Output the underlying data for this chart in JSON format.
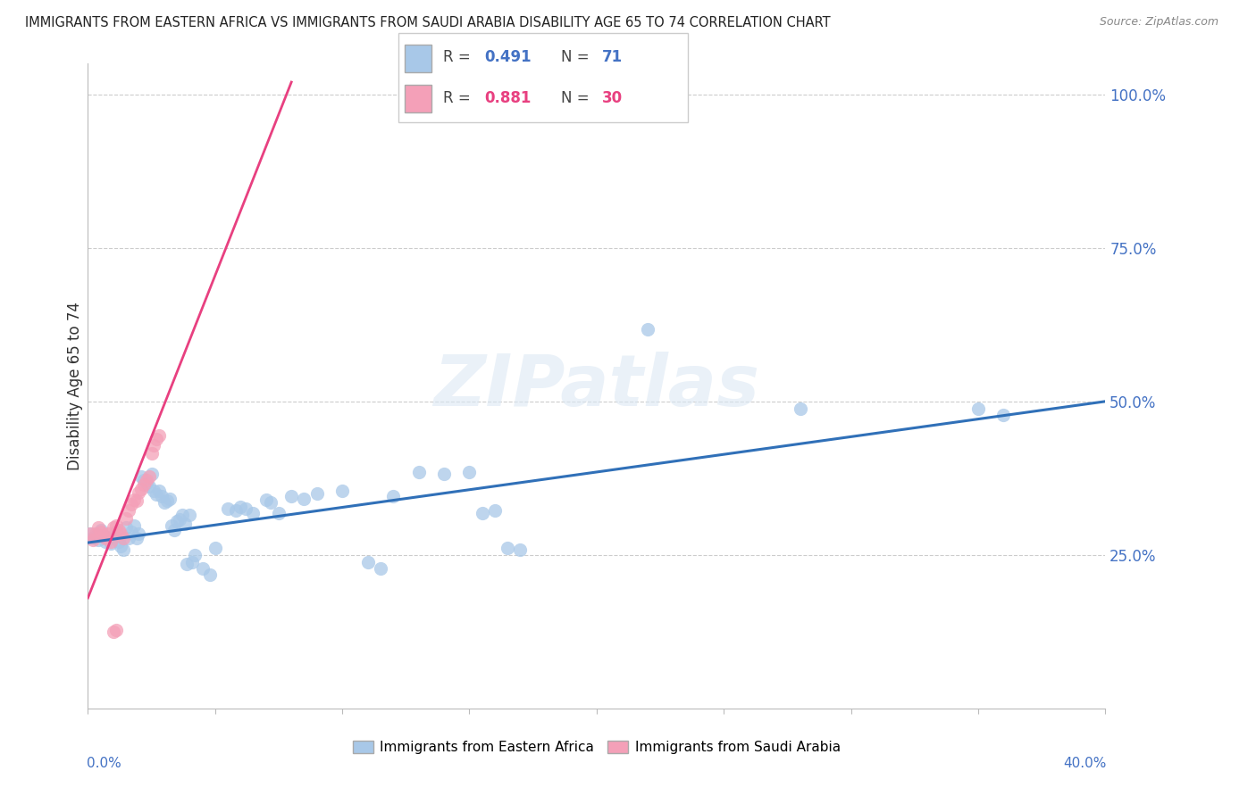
{
  "title": "IMMIGRANTS FROM EASTERN AFRICA VS IMMIGRANTS FROM SAUDI ARABIA DISABILITY AGE 65 TO 74 CORRELATION CHART",
  "source": "Source: ZipAtlas.com",
  "ylabel": "Disability Age 65 to 74",
  "ytick_labels": [
    "100.0%",
    "75.0%",
    "50.0%",
    "25.0%"
  ],
  "ytick_values": [
    1.0,
    0.75,
    0.5,
    0.25
  ],
  "xlim": [
    0.0,
    0.4
  ],
  "ylim": [
    0.0,
    1.05
  ],
  "watermark": "ZIPatlas",
  "legend_blue_r": "R = 0.491",
  "legend_blue_n": "N = 71",
  "legend_pink_r": "R = 0.881",
  "legend_pink_n": "N = 30",
  "blue_color": "#a8c8e8",
  "pink_color": "#f4a0b8",
  "blue_line_color": "#3070b8",
  "pink_line_color": "#e84080",
  "blue_line_x": [
    0.0,
    0.4
  ],
  "blue_line_y": [
    0.27,
    0.5
  ],
  "pink_line_x": [
    0.0,
    0.08
  ],
  "pink_line_y": [
    0.18,
    1.02
  ],
  "blue_scatter": [
    [
      0.001,
      0.285
    ],
    [
      0.002,
      0.278
    ],
    [
      0.003,
      0.28
    ],
    [
      0.004,
      0.275
    ],
    [
      0.005,
      0.29
    ],
    [
      0.006,
      0.282
    ],
    [
      0.007,
      0.272
    ],
    [
      0.008,
      0.276
    ],
    [
      0.009,
      0.268
    ],
    [
      0.01,
      0.282
    ],
    [
      0.011,
      0.288
    ],
    [
      0.012,
      0.272
    ],
    [
      0.013,
      0.265
    ],
    [
      0.014,
      0.258
    ],
    [
      0.015,
      0.295
    ],
    [
      0.016,
      0.278
    ],
    [
      0.017,
      0.288
    ],
    [
      0.018,
      0.298
    ],
    [
      0.019,
      0.278
    ],
    [
      0.02,
      0.285
    ],
    [
      0.021,
      0.378
    ],
    [
      0.022,
      0.372
    ],
    [
      0.023,
      0.368
    ],
    [
      0.024,
      0.362
    ],
    [
      0.025,
      0.382
    ],
    [
      0.026,
      0.355
    ],
    [
      0.027,
      0.348
    ],
    [
      0.028,
      0.355
    ],
    [
      0.029,
      0.345
    ],
    [
      0.03,
      0.335
    ],
    [
      0.031,
      0.338
    ],
    [
      0.032,
      0.342
    ],
    [
      0.033,
      0.298
    ],
    [
      0.034,
      0.29
    ],
    [
      0.035,
      0.305
    ],
    [
      0.036,
      0.308
    ],
    [
      0.037,
      0.315
    ],
    [
      0.038,
      0.3
    ],
    [
      0.039,
      0.235
    ],
    [
      0.04,
      0.315
    ],
    [
      0.041,
      0.238
    ],
    [
      0.042,
      0.25
    ],
    [
      0.045,
      0.228
    ],
    [
      0.048,
      0.218
    ],
    [
      0.05,
      0.262
    ],
    [
      0.055,
      0.325
    ],
    [
      0.058,
      0.322
    ],
    [
      0.06,
      0.328
    ],
    [
      0.062,
      0.325
    ],
    [
      0.065,
      0.318
    ],
    [
      0.07,
      0.34
    ],
    [
      0.072,
      0.335
    ],
    [
      0.075,
      0.318
    ],
    [
      0.08,
      0.345
    ],
    [
      0.085,
      0.342
    ],
    [
      0.09,
      0.35
    ],
    [
      0.1,
      0.355
    ],
    [
      0.11,
      0.238
    ],
    [
      0.115,
      0.228
    ],
    [
      0.12,
      0.345
    ],
    [
      0.13,
      0.385
    ],
    [
      0.14,
      0.382
    ],
    [
      0.15,
      0.385
    ],
    [
      0.155,
      0.318
    ],
    [
      0.16,
      0.322
    ],
    [
      0.165,
      0.262
    ],
    [
      0.17,
      0.258
    ],
    [
      0.22,
      0.618
    ],
    [
      0.28,
      0.488
    ],
    [
      0.35,
      0.488
    ],
    [
      0.36,
      0.478
    ]
  ],
  "pink_scatter": [
    [
      0.001,
      0.285
    ],
    [
      0.002,
      0.275
    ],
    [
      0.003,
      0.285
    ],
    [
      0.004,
      0.295
    ],
    [
      0.005,
      0.288
    ],
    [
      0.006,
      0.282
    ],
    [
      0.007,
      0.278
    ],
    [
      0.008,
      0.285
    ],
    [
      0.009,
      0.272
    ],
    [
      0.01,
      0.295
    ],
    [
      0.011,
      0.298
    ],
    [
      0.012,
      0.29
    ],
    [
      0.013,
      0.285
    ],
    [
      0.014,
      0.278
    ],
    [
      0.015,
      0.31
    ],
    [
      0.016,
      0.322
    ],
    [
      0.017,
      0.332
    ],
    [
      0.018,
      0.34
    ],
    [
      0.019,
      0.338
    ],
    [
      0.02,
      0.352
    ],
    [
      0.021,
      0.358
    ],
    [
      0.022,
      0.365
    ],
    [
      0.023,
      0.372
    ],
    [
      0.024,
      0.378
    ],
    [
      0.025,
      0.415
    ],
    [
      0.026,
      0.428
    ],
    [
      0.027,
      0.438
    ],
    [
      0.028,
      0.445
    ],
    [
      0.01,
      0.125
    ],
    [
      0.011,
      0.128
    ]
  ]
}
